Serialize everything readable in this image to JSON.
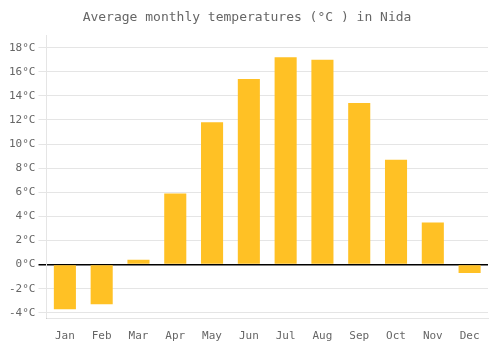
{
  "chart_data": {
    "type": "bar",
    "title": "Average monthly temperatures (°C ) in Nida",
    "categories": [
      "Jan",
      "Feb",
      "Mar",
      "Apr",
      "May",
      "Jun",
      "Jul",
      "Aug",
      "Sep",
      "Oct",
      "Nov",
      "Dec"
    ],
    "values": [
      -3.7,
      -3.3,
      0.4,
      5.9,
      11.8,
      15.4,
      17.2,
      17.0,
      13.4,
      8.7,
      3.5,
      -0.7
    ],
    "color": "#FFC125",
    "ylim": [
      -4.5,
      19
    ],
    "yticks": [
      {
        "value": -4,
        "label": "-4°C"
      },
      {
        "value": -2,
        "label": "-2°C"
      },
      {
        "value": 0,
        "label": "0°C"
      },
      {
        "value": 2,
        "label": "2°C"
      },
      {
        "value": 4,
        "label": "4°C"
      },
      {
        "value": 6,
        "label": "6°C"
      },
      {
        "value": 8,
        "label": "8°C"
      },
      {
        "value": 10,
        "label": "10°C"
      },
      {
        "value": 12,
        "label": "12°C"
      },
      {
        "value": 14,
        "label": "14°C"
      },
      {
        "value": 16,
        "label": "16°C"
      },
      {
        "value": 18,
        "label": "18°C"
      }
    ],
    "grid": true
  }
}
